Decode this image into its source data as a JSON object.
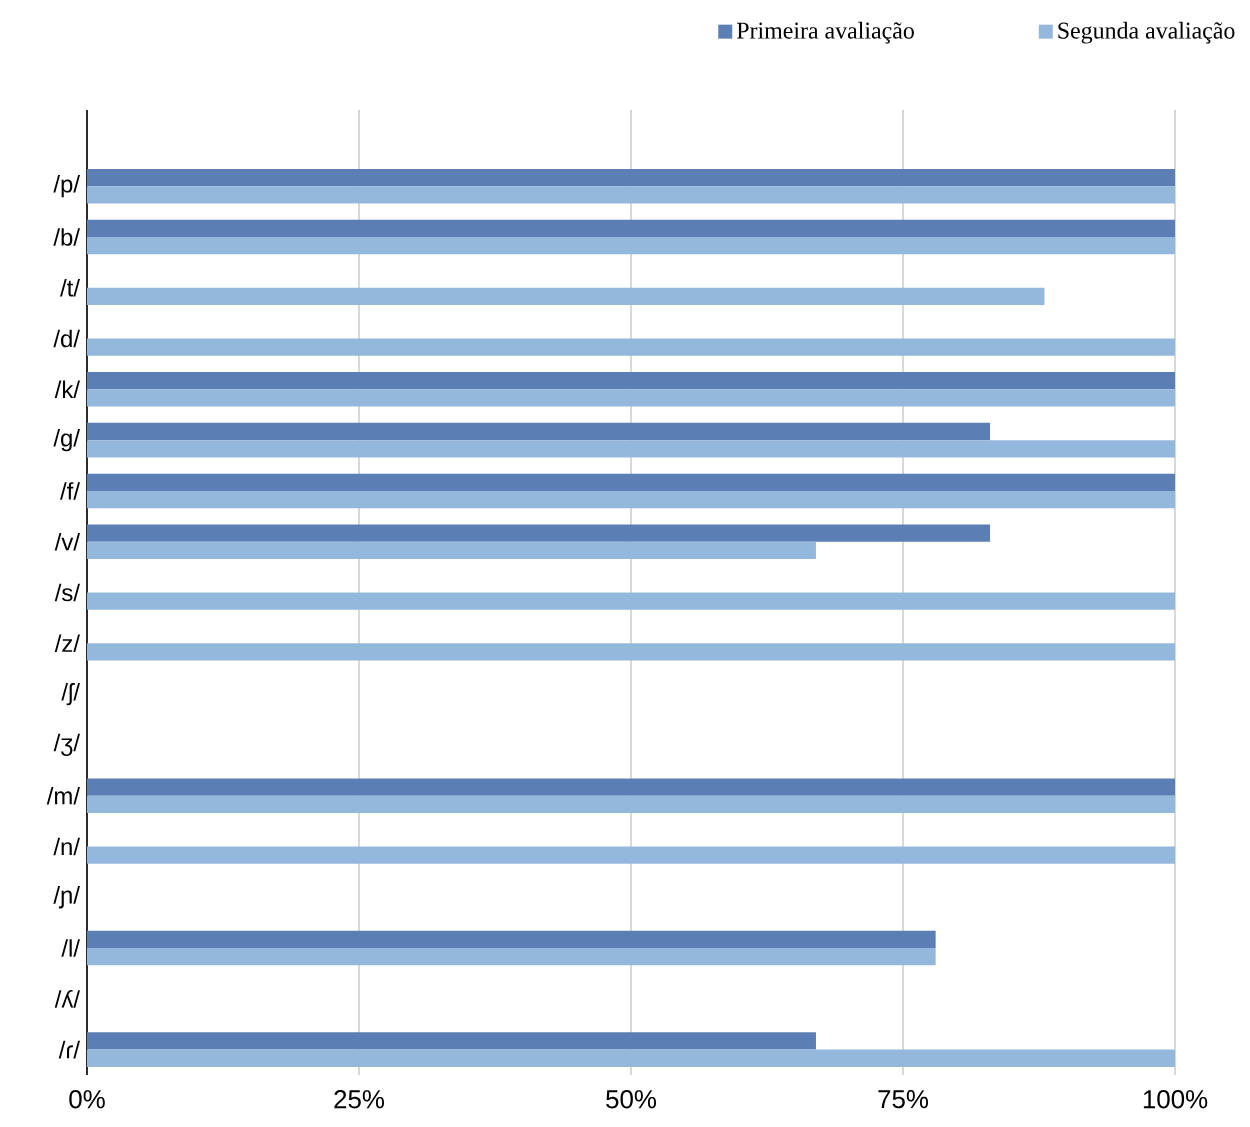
{
  "chart_data": {
    "type": "bar",
    "orientation": "horizontal",
    "categories": [
      "/p/",
      "/b/",
      "/t/",
      "/d/",
      "/k/",
      "/g/",
      "/f/",
      "/v/",
      "/s/",
      "/z/",
      "/ʃ/",
      "/ʒ/",
      "/m/",
      "/n/",
      "/ɲ/",
      "/l/",
      "/ʎ/",
      "/ɾ/"
    ],
    "series": [
      {
        "name": "Primeira avaliação",
        "color": "#5b7fb5",
        "values": [
          100,
          100,
          0,
          0,
          100,
          83,
          100,
          83,
          0,
          0,
          0,
          0,
          100,
          0,
          0,
          78,
          0,
          67
        ]
      },
      {
        "name": "Segunda avaliação",
        "color": "#94b8dc",
        "values": [
          100,
          100,
          88,
          100,
          100,
          100,
          100,
          67,
          100,
          100,
          0,
          0,
          100,
          100,
          0,
          78,
          0,
          100
        ]
      }
    ],
    "xlim": [
      0,
      100
    ],
    "xticks": [
      {
        "value": 0,
        "label": "0%"
      },
      {
        "value": 25,
        "label": "25%"
      },
      {
        "value": 50,
        "label": "50%"
      },
      {
        "value": 75,
        "label": "75%"
      },
      {
        "value": 100,
        "label": "100%"
      }
    ],
    "grid": "x",
    "legend": "top right"
  }
}
